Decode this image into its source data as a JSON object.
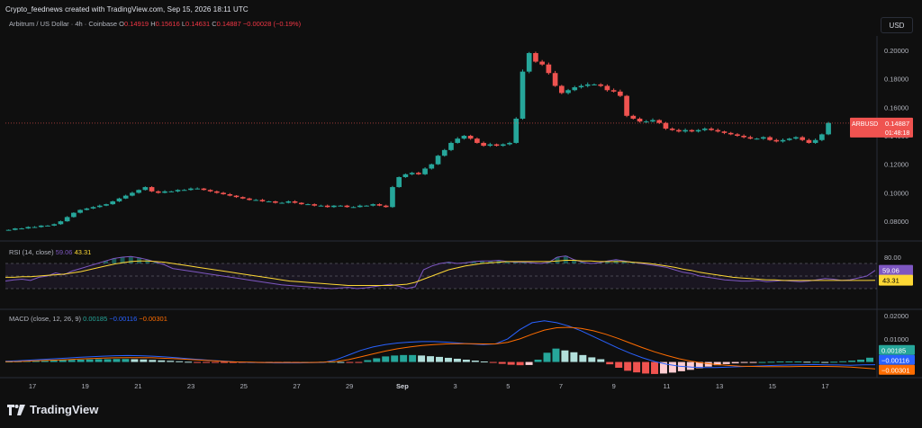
{
  "header": {
    "attribution": "Crypto_feednews created with TradingView.com, Sep 15, 2026 18:11 UTC",
    "currency_button": "USD",
    "brand": "TradingView"
  },
  "symbol_info": {
    "title": "Arbitrum / US Dollar · 4h · Coinbase",
    "o_label": "O",
    "o_value": "0.14919",
    "h_label": "H",
    "h_value": "0.15616",
    "l_label": "L",
    "l_value": "0.14631",
    "c_label": "C",
    "c_value": "0.14887",
    "change": "−0.00028 (−0.19%)"
  },
  "price_label": {
    "symbol": "ARBUSD",
    "value": "0.14887",
    "countdown": "01:48:18"
  },
  "rsi": {
    "title": "RSI (14, close)",
    "rsi_value": "59.06",
    "ma_value": "43.31",
    "upper_tick": "80.00"
  },
  "macd": {
    "title": "MACD (close, 12, 26, 9)",
    "hist_value": "0.00185",
    "macd_value": "−0.00116",
    "signal_value": "−0.00301"
  },
  "colors": {
    "up": "#26a69a",
    "down": "#ef5350",
    "macd": "#2962ff",
    "signal": "#ff6d00",
    "rsi": "#7e57c2",
    "rsi_ma": "#fdd835",
    "bg": "#0f0f0f"
  },
  "chart_data": [
    {
      "type": "candlestick",
      "title": "Arbitrum / US Dollar · 4h · Coinbase",
      "y_ticks": [
        "0.08000",
        "0.10000",
        "0.12000",
        "0.14000",
        "0.16000",
        "0.18000",
        "0.20000"
      ],
      "ylim": [
        0.07,
        0.21
      ],
      "x_ticks": [
        "17",
        "19",
        "21",
        "23",
        "25",
        "27",
        "29",
        "Sep",
        "3",
        "5",
        "7",
        "9",
        "11",
        "13",
        "15",
        "17"
      ],
      "last_price": 0.14887,
      "close_series_approx": [
        0.074,
        0.075,
        0.075,
        0.076,
        0.076,
        0.077,
        0.077,
        0.078,
        0.08,
        0.083,
        0.086,
        0.088,
        0.089,
        0.09,
        0.091,
        0.092,
        0.094,
        0.096,
        0.098,
        0.1,
        0.102,
        0.104,
        0.101,
        0.1,
        0.101,
        0.101,
        0.102,
        0.102,
        0.103,
        0.103,
        0.102,
        0.101,
        0.1,
        0.099,
        0.098,
        0.097,
        0.096,
        0.095,
        0.095,
        0.094,
        0.094,
        0.093,
        0.093,
        0.094,
        0.093,
        0.092,
        0.092,
        0.091,
        0.091,
        0.09,
        0.091,
        0.091,
        0.09,
        0.09,
        0.091,
        0.091,
        0.092,
        0.091,
        0.09,
        0.104,
        0.111,
        0.113,
        0.114,
        0.113,
        0.117,
        0.12,
        0.126,
        0.13,
        0.135,
        0.138,
        0.14,
        0.138,
        0.135,
        0.133,
        0.134,
        0.133,
        0.134,
        0.135,
        0.152,
        0.185,
        0.198,
        0.192,
        0.19,
        0.184,
        0.175,
        0.17,
        0.172,
        0.174,
        0.175,
        0.176,
        0.176,
        0.175,
        0.172,
        0.171,
        0.168,
        0.154,
        0.152,
        0.15,
        0.15,
        0.151,
        0.149,
        0.145,
        0.144,
        0.143,
        0.144,
        0.143,
        0.144,
        0.145,
        0.144,
        0.143,
        0.142,
        0.141,
        0.14,
        0.139,
        0.138,
        0.138,
        0.139,
        0.137,
        0.136,
        0.137,
        0.138,
        0.139,
        0.137,
        0.135,
        0.137,
        0.141,
        0.149
      ]
    },
    {
      "type": "line",
      "title": "RSI (14, close)",
      "series": [
        {
          "name": "RSI",
          "values": [
            42,
            44,
            45,
            43,
            48,
            50,
            55,
            52,
            58,
            62,
            66,
            70,
            74,
            78,
            80,
            81,
            79,
            76,
            72,
            68,
            62,
            60,
            58,
            56,
            54,
            52,
            50,
            48,
            46,
            44,
            42,
            40,
            38,
            36,
            35,
            34,
            33,
            32,
            31,
            30,
            31,
            32,
            30,
            31,
            33,
            35,
            37,
            34,
            30,
            33,
            60,
            66,
            70,
            72,
            70,
            71,
            73,
            74,
            74,
            75,
            73,
            72,
            72,
            71,
            70,
            72,
            80,
            82,
            76,
            72,
            70,
            71,
            74,
            76,
            74,
            72,
            70,
            68,
            66,
            64,
            60,
            56,
            54,
            50,
            48,
            46,
            44,
            43,
            42,
            42,
            43,
            41,
            42,
            43,
            42,
            41,
            42,
            44,
            46,
            45,
            43,
            44,
            47,
            50,
            59
          ]
        },
        {
          "name": "MA",
          "values": [
            48,
            48,
            49,
            49,
            50,
            51,
            52,
            53,
            55,
            57,
            60,
            63,
            66,
            69,
            71,
            73,
            74,
            74,
            73,
            72,
            70,
            68,
            66,
            64,
            62,
            60,
            58,
            56,
            54,
            52,
            50,
            48,
            46,
            44,
            42,
            41,
            40,
            39,
            38,
            37,
            36,
            35,
            35,
            35,
            35,
            35,
            35,
            36,
            37,
            40,
            45,
            50,
            55,
            60,
            63,
            66,
            68,
            70,
            71,
            72,
            73,
            73,
            73,
            73,
            73,
            73,
            74,
            75,
            75,
            74,
            74,
            73,
            73,
            73,
            73,
            72,
            71,
            70,
            68,
            66,
            64,
            61,
            59,
            56,
            54,
            52,
            50,
            48,
            47,
            46,
            45,
            44,
            44,
            43,
            43,
            43,
            43,
            43,
            43,
            43,
            43,
            43,
            43,
            43,
            43.31
          ]
        }
      ],
      "y_ticks": [
        "80.00"
      ],
      "ylim": [
        0,
        100
      ]
    },
    {
      "type": "bar+line",
      "title": "MACD (close, 12, 26, 9)",
      "y_ticks": [
        "0.00000",
        "0.01000",
        "0.02000"
      ],
      "ylim": [
        -0.006,
        0.022
      ],
      "series": [
        {
          "name": "Histogram",
          "values": [
            0.0002,
            0.0003,
            0.0004,
            0.0005,
            0.0006,
            0.0007,
            0.0008,
            0.0009,
            0.001,
            0.0011,
            0.0012,
            0.0012,
            0.0013,
            0.0013,
            0.0012,
            0.0011,
            0.0009,
            0.0007,
            0.0005,
            0.0003,
            0.0001,
            -0.0001,
            -0.0002,
            -0.0003,
            -0.0004,
            -0.0004,
            -0.0004,
            -0.0003,
            -0.0003,
            -0.0002,
            -0.0002,
            -0.0001,
            -0.0001,
            0.0,
            0.0,
            0.0001,
            0.0001,
            0.0,
            -0.0001,
            -0.0001,
            0.0008,
            0.0016,
            0.0024,
            0.0028,
            0.003,
            0.003,
            0.0028,
            0.0025,
            0.0022,
            0.0018,
            0.0014,
            0.001,
            0.0006,
            0.0002,
            -0.0003,
            -0.0008,
            -0.0012,
            -0.0014,
            -0.0013,
            0.001,
            0.004,
            0.0058,
            0.005,
            0.0042,
            0.003,
            0.002,
            0.0012,
            -0.001,
            -0.0025,
            -0.0038,
            -0.0045,
            -0.005,
            -0.0052,
            -0.005,
            -0.0046,
            -0.004,
            -0.0034,
            -0.0027,
            -0.002,
            -0.0014,
            -0.0009,
            -0.0006,
            -0.0003,
            -0.0001,
            0.0,
            0.0001,
            0.0002,
            0.0002,
            0.0002,
            0.0001,
            0.0001,
            0.0,
            0.0001,
            0.0003,
            0.0006,
            0.001,
            0.00185
          ]
        },
        {
          "name": "MACD",
          "values": [
            0.0003,
            0.0005,
            0.0008,
            0.0011,
            0.0014,
            0.0017,
            0.002,
            0.0023,
            0.0025,
            0.0027,
            0.0028,
            0.0027,
            0.0025,
            0.0022,
            0.0018,
            0.0014,
            0.001,
            0.0006,
            0.0003,
            0.0,
            -0.0002,
            -0.0003,
            -0.0004,
            -0.0004,
            -0.0004,
            -0.0003,
            -0.0002,
            0.001,
            0.003,
            0.005,
            0.0065,
            0.0075,
            0.0082,
            0.0086,
            0.0088,
            0.0088,
            0.0086,
            0.0082,
            0.0078,
            0.0075,
            0.0078,
            0.01,
            0.014,
            0.017,
            0.0178,
            0.017,
            0.0155,
            0.0135,
            0.011,
            0.0085,
            0.006,
            0.0038,
            0.0018,
            0.0002,
            -0.001,
            -0.0018,
            -0.0022,
            -0.0024,
            -0.0024,
            -0.0022,
            -0.002,
            -0.0018,
            -0.0016,
            -0.0014,
            -0.0013,
            -0.0012,
            -0.0011,
            -0.0012,
            -0.0013,
            -0.0014,
            -0.0012,
            -0.00116
          ]
        },
        {
          "name": "Signal",
          "values": [
            0.0001,
            0.0002,
            0.0004,
            0.0006,
            0.0008,
            0.001,
            0.0013,
            0.0015,
            0.0017,
            0.0018,
            0.0019,
            0.0019,
            0.0018,
            0.0016,
            0.0014,
            0.0011,
            0.0008,
            0.0005,
            0.0002,
            0.0,
            -0.0001,
            -0.0002,
            -0.0002,
            -0.0002,
            -0.0002,
            -0.0002,
            -0.0001,
            0.0002,
            0.001,
            0.0022,
            0.0035,
            0.0047,
            0.0057,
            0.0065,
            0.0071,
            0.0075,
            0.0078,
            0.0079,
            0.0079,
            0.0078,
            0.0078,
            0.0085,
            0.01,
            0.012,
            0.0138,
            0.0148,
            0.015,
            0.0145,
            0.0135,
            0.012,
            0.0102,
            0.0082,
            0.0062,
            0.0044,
            0.0028,
            0.0014,
            0.0003,
            -0.0005,
            -0.0011,
            -0.0015,
            -0.0018,
            -0.0019,
            -0.002,
            -0.002,
            -0.002,
            -0.0019,
            -0.0019,
            -0.0019,
            -0.002,
            -0.0022,
            -0.0026,
            -0.00301
          ]
        }
      ]
    }
  ]
}
